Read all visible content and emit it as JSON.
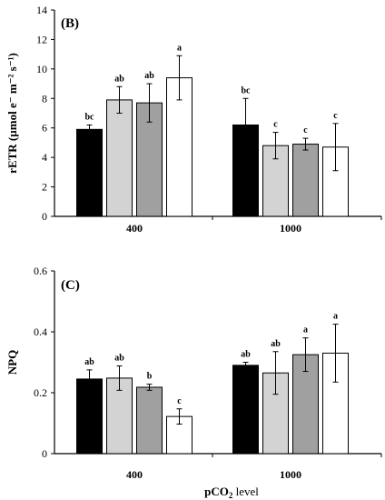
{
  "figure": {
    "xlabel_prefix": "pCO",
    "xlabel_sub": "2",
    "xlabel_suffix": " level"
  },
  "chart_data": [
    {
      "type": "bar",
      "panel_label": "(B)",
      "ylabel": "rETR (µmol e⁻ m⁻² s⁻¹)",
      "categories": [
        "400",
        "1000"
      ],
      "ylim": [
        0,
        14
      ],
      "yticks": [
        0,
        2,
        4,
        6,
        8,
        10,
        12,
        14
      ],
      "grid": false,
      "series": [
        {
          "color": "#000000",
          "values": [
            5.9,
            6.2
          ],
          "errors": [
            0.3,
            1.8
          ],
          "letters": [
            "bc",
            "bc"
          ]
        },
        {
          "color": "#d3d3d3",
          "values": [
            7.9,
            4.8
          ],
          "errors": [
            0.9,
            0.9
          ],
          "letters": [
            "ab",
            "c"
          ]
        },
        {
          "color": "#a0a0a0",
          "values": [
            7.7,
            4.9
          ],
          "errors": [
            1.3,
            0.4
          ],
          "letters": [
            "ab",
            "c"
          ]
        },
        {
          "color": "#ffffff",
          "values": [
            9.4,
            4.7
          ],
          "errors": [
            1.5,
            1.6
          ],
          "letters": [
            "a",
            "c"
          ]
        }
      ]
    },
    {
      "type": "bar",
      "panel_label": "(C)",
      "ylabel": "NPQ",
      "categories": [
        "400",
        "1000"
      ],
      "ylim": [
        0,
        0.6
      ],
      "yticks": [
        "0",
        "0.2",
        "0.4",
        "0.6"
      ],
      "grid": false,
      "series": [
        {
          "color": "#000000",
          "values": [
            0.245,
            0.29
          ],
          "errors": [
            0.03,
            0.01
          ],
          "letters": [
            "ab",
            "ab"
          ]
        },
        {
          "color": "#d3d3d3",
          "values": [
            0.248,
            0.265
          ],
          "errors": [
            0.04,
            0.07
          ],
          "letters": [
            "ab",
            "ab"
          ]
        },
        {
          "color": "#a0a0a0",
          "values": [
            0.218,
            0.325
          ],
          "errors": [
            0.01,
            0.055
          ],
          "letters": [
            "b",
            "a"
          ]
        },
        {
          "color": "#ffffff",
          "values": [
            0.122,
            0.33
          ],
          "errors": [
            0.025,
            0.095
          ],
          "letters": [
            "c",
            "a"
          ]
        }
      ]
    }
  ]
}
